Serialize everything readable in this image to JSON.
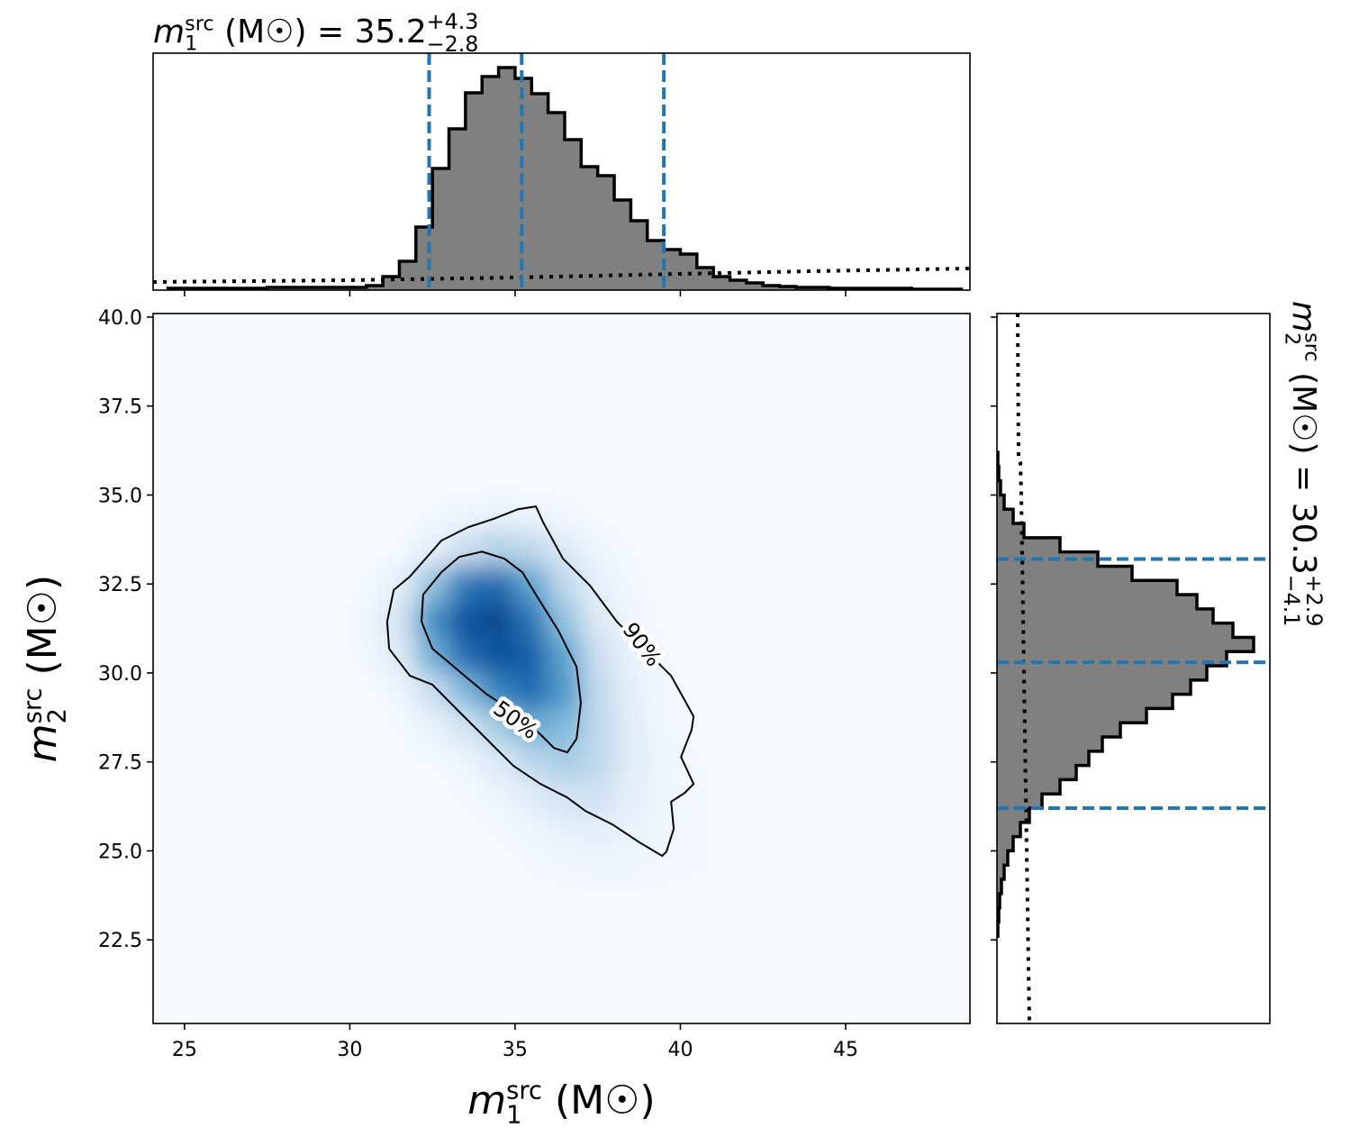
{
  "chart_data": [
    {
      "type": "heatmap",
      "xlabel": {
        "symbol": "m",
        "sup": "src",
        "sub": "1",
        "text": " (M☉)"
      },
      "ylabel": {
        "symbol": "m",
        "sup": "src",
        "sub": "2",
        "text": " (M☉)"
      },
      "xlim": [
        24.05,
        48.76
      ],
      "ylim": [
        20.15,
        40.1
      ],
      "xticks": [
        25,
        30,
        35,
        40,
        45
      ],
      "yticks": [
        {
          "value": 22.5,
          "label": "22.5"
        },
        {
          "value": 25,
          "label": "25.0"
        },
        27.5,
        {
          "value": 30,
          "label": "30.0"
        },
        32.5,
        {
          "value": 35,
          "label": "35.0"
        },
        37.5,
        {
          "value": 40,
          "label": "40.0"
        }
      ],
      "colors": [
        "#f7fbff",
        "#deebf7",
        "#c6dbef",
        "#9ecae1",
        "#6baed6",
        "#4292c6",
        "#2171b5",
        "#08519c",
        "#08306b"
      ],
      "vlim": [
        0,
        1.1
      ],
      "x_bins": [
        30,
        31,
        32,
        33,
        34,
        35,
        36,
        37,
        38,
        39,
        40,
        41,
        42
      ],
      "y_bins": [
        24,
        25,
        26,
        27,
        28,
        29,
        30,
        31,
        32,
        33,
        34,
        35
      ],
      "values": [
        [
          0,
          0,
          0,
          0,
          0,
          0.02,
          0.03,
          0.04,
          0.04,
          0.03,
          0.02,
          0.01
        ],
        [
          0,
          0,
          0,
          0,
          0.02,
          0.05,
          0.08,
          0.1,
          0.07,
          0.04,
          0.02,
          0.01
        ],
        [
          0,
          0,
          0,
          0.02,
          0.05,
          0.12,
          0.2,
          0.22,
          0.1,
          0.05,
          0.02,
          0.01
        ],
        [
          0,
          0,
          0.02,
          0.06,
          0.15,
          0.3,
          0.38,
          0.3,
          0.12,
          0.05,
          0.02,
          0
        ],
        [
          0,
          0.02,
          0.08,
          0.2,
          0.4,
          0.55,
          0.5,
          0.3,
          0.12,
          0.04,
          0.01,
          0
        ],
        [
          0.01,
          0.05,
          0.25,
          0.5,
          0.75,
          0.85,
          0.65,
          0.3,
          0.1,
          0.03,
          0.01,
          0
        ],
        [
          0.03,
          0.15,
          0.55,
          0.85,
          0.95,
          0.9,
          0.6,
          0.25,
          0.08,
          0.02,
          0,
          0
        ],
        [
          0.04,
          0.2,
          0.7,
          0.95,
          1.0,
          0.8,
          0.45,
          0.15,
          0.05,
          0.01,
          0,
          0
        ],
        [
          0.02,
          0.1,
          0.45,
          0.8,
          0.85,
          0.6,
          0.3,
          0.1,
          0.03,
          0,
          0,
          0
        ],
        [
          0,
          0.02,
          0.1,
          0.25,
          0.35,
          0.3,
          0.15,
          0.05,
          0.02,
          0,
          0,
          0
        ],
        [
          0,
          0,
          0.02,
          0.05,
          0.08,
          0.06,
          0.03,
          0.01,
          0,
          0,
          0,
          0
        ]
      ],
      "contours": [
        {
          "label": "90%",
          "x": [
            31.19,
            31.13,
            31.33,
            31.82,
            32.77,
            33.59,
            34.35,
            35.09,
            35.63,
            35.85,
            36.45,
            37.27,
            38.08,
            39.72,
            40.4,
            40.34,
            40.02,
            40.4,
            40.13,
            39.72,
            39.8,
            39.58,
            39.45,
            38.76,
            37.95,
            37.13,
            36.58,
            35.77,
            34.95,
            34.13,
            33.31,
            32.5,
            31.82,
            31.19
          ],
          "y": [
            30.68,
            31.44,
            32.33,
            32.71,
            33.72,
            34.1,
            34.33,
            34.6,
            34.68,
            34.23,
            33.21,
            32.45,
            31.44,
            29.92,
            28.78,
            28.4,
            27.64,
            26.88,
            26.63,
            26.38,
            25.62,
            24.98,
            24.86,
            25.24,
            25.74,
            26.12,
            26.5,
            26.88,
            27.39,
            28.15,
            28.91,
            29.67,
            29.92,
            30.68
          ]
        },
        {
          "label": "50%",
          "x": [
            32.17,
            32.22,
            32.77,
            33.31,
            34.0,
            34.68,
            35.22,
            35.63,
            36.31,
            36.86,
            36.99,
            36.86,
            36.58,
            36.18,
            35.77,
            34.95,
            34.13,
            33.31,
            32.5,
            32.17
          ],
          "y": [
            31.44,
            32.2,
            32.83,
            33.26,
            33.41,
            33.21,
            32.83,
            32.2,
            31.19,
            30.17,
            29.16,
            28.15,
            27.77,
            27.89,
            28.27,
            28.91,
            29.41,
            30.05,
            30.68,
            31.44
          ]
        }
      ]
    },
    {
      "type": "histogram",
      "orientation": "vertical",
      "title": {
        "symbol": "m",
        "sup": "src",
        "sub": "1",
        "text": " (M☉) = 35.2",
        "upper": "+4.3",
        "lower": "−2.8"
      },
      "xlim": [
        24.05,
        48.76
      ],
      "ylim": [
        0,
        263
      ],
      "xticks": [
        25,
        30,
        35,
        40,
        45
      ],
      "color": "#808080",
      "edge_color": "#000000",
      "bins": [
        24.5,
        25,
        25.5,
        26,
        26.5,
        27,
        27.5,
        28,
        28.5,
        29,
        29.5,
        30,
        30.5,
        31,
        31.5,
        32,
        32.5,
        33,
        33.5,
        34,
        34.5,
        35,
        35.5,
        36,
        36.5,
        37,
        37.5,
        38,
        38.5,
        39,
        39.5,
        40,
        40.5,
        41,
        41.5,
        42,
        42.5,
        43,
        43.5,
        44,
        44.5,
        45,
        45.5,
        46,
        46.5,
        47,
        47.5,
        48,
        48.5
      ],
      "values": [
        2,
        2,
        2,
        2,
        2,
        2,
        3,
        3,
        3,
        3,
        3,
        3,
        5,
        15,
        32,
        70,
        135,
        179,
        219,
        237,
        247,
        235,
        218,
        197,
        167,
        137,
        127,
        100,
        77,
        55,
        45,
        40,
        25,
        15,
        11,
        8,
        5,
        4,
        3,
        3,
        2,
        2,
        2,
        2,
        2,
        1,
        1,
        1
      ],
      "quantiles": [
        32.4,
        35.2,
        39.5
      ],
      "quantile_color": "#1f77b4",
      "prior": {
        "color": "#000000",
        "x": [
          24.05,
          30,
          35,
          40,
          44,
          48.76
        ],
        "values": [
          9,
          11,
          14,
          18,
          21,
          24
        ]
      }
    },
    {
      "type": "histogram",
      "orientation": "horizontal",
      "title": {
        "symbol": "m",
        "sup": "src",
        "sub": "2",
        "text": " (M☉) = 30.3",
        "upper": "+2.9",
        "lower": "−4.1"
      },
      "ylim": [
        20.15,
        40.1
      ],
      "xlim": [
        0,
        303
      ],
      "yticks": [
        22.5,
        25,
        27.5,
        30,
        32.5,
        35,
        37.5,
        40
      ],
      "color": "#808080",
      "edge_color": "#000000",
      "bins": [
        22.6,
        23,
        23.4,
        23.8,
        24.2,
        24.6,
        25,
        25.4,
        25.8,
        26.2,
        26.6,
        27,
        27.4,
        27.8,
        28.2,
        28.6,
        29,
        29.4,
        29.8,
        30.2,
        30.6,
        31,
        31.4,
        31.8,
        32.2,
        32.6,
        33,
        33.4,
        33.8,
        34.2,
        34.6,
        35,
        35.4,
        35.8,
        36.2
      ],
      "values": [
        1,
        2,
        3,
        5,
        8,
        12,
        18,
        26,
        36,
        50,
        70,
        88,
        102,
        117,
        137,
        166,
        195,
        215,
        233,
        255,
        285,
        262,
        240,
        222,
        200,
        150,
        112,
        70,
        30,
        18,
        8,
        4,
        2,
        1
      ],
      "quantiles": [
        26.2,
        30.3,
        33.2
      ],
      "quantile_color": "#1f77b4",
      "prior": {
        "color": "#000000",
        "y": [
          40.1,
          36,
          35.9,
          35,
          30,
          25,
          20.15
        ],
        "values": [
          23,
          24,
          26,
          27,
          30,
          33,
          36
        ]
      }
    }
  ]
}
